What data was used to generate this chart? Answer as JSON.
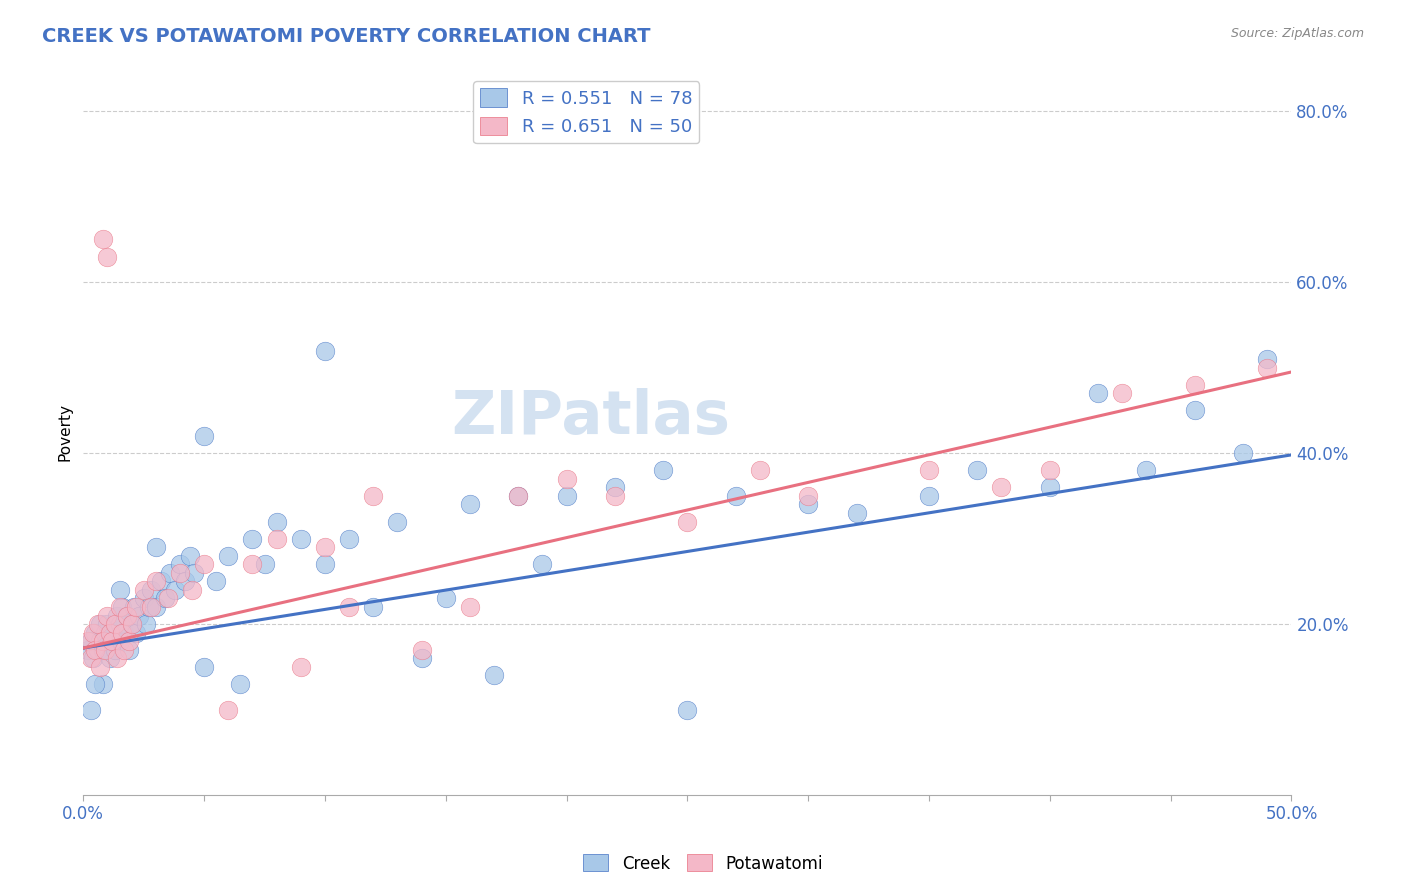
{
  "title": "CREEK VS POTAWATOMI POVERTY CORRELATION CHART",
  "source": "Source: ZipAtlas.com",
  "ylabel": "Poverty",
  "xlim": [
    0.0,
    0.5
  ],
  "ylim": [
    0.0,
    0.85
  ],
  "ytick_positions": [
    0.2,
    0.4,
    0.6,
    0.8
  ],
  "yticklabels": [
    "20.0%",
    "40.0%",
    "60.0%",
    "80.0%"
  ],
  "creek_color": "#a8c8e8",
  "potawatomi_color": "#f4b8c8",
  "creek_line_color": "#4472c4",
  "potawatomi_line_color": "#e87080",
  "creek_R": 0.551,
  "creek_N": 78,
  "potawatomi_R": 0.651,
  "potawatomi_N": 50,
  "background_color": "#ffffff",
  "grid_color": "#cccccc",
  "watermark": "ZIPatlas",
  "creek_scatter_x": [
    0.002,
    0.003,
    0.004,
    0.005,
    0.006,
    0.007,
    0.007,
    0.008,
    0.009,
    0.01,
    0.01,
    0.011,
    0.012,
    0.013,
    0.014,
    0.015,
    0.015,
    0.016,
    0.017,
    0.018,
    0.019,
    0.02,
    0.021,
    0.022,
    0.023,
    0.025,
    0.026,
    0.027,
    0.028,
    0.03,
    0.032,
    0.034,
    0.036,
    0.038,
    0.04,
    0.042,
    0.044,
    0.046,
    0.05,
    0.055,
    0.06,
    0.065,
    0.07,
    0.075,
    0.08,
    0.09,
    0.1,
    0.11,
    0.12,
    0.13,
    0.14,
    0.15,
    0.16,
    0.17,
    0.18,
    0.19,
    0.2,
    0.22,
    0.24,
    0.25,
    0.27,
    0.3,
    0.32,
    0.35,
    0.37,
    0.4,
    0.42,
    0.44,
    0.46,
    0.48,
    0.49,
    0.1,
    0.05,
    0.03,
    0.015,
    0.008,
    0.005,
    0.003
  ],
  "creek_scatter_y": [
    0.17,
    0.18,
    0.16,
    0.19,
    0.17,
    0.18,
    0.2,
    0.17,
    0.19,
    0.18,
    0.2,
    0.16,
    0.19,
    0.17,
    0.21,
    0.18,
    0.2,
    0.22,
    0.19,
    0.21,
    0.17,
    0.2,
    0.22,
    0.19,
    0.21,
    0.23,
    0.2,
    0.22,
    0.24,
    0.22,
    0.25,
    0.23,
    0.26,
    0.24,
    0.27,
    0.25,
    0.28,
    0.26,
    0.15,
    0.25,
    0.28,
    0.13,
    0.3,
    0.27,
    0.32,
    0.3,
    0.27,
    0.3,
    0.22,
    0.32,
    0.16,
    0.23,
    0.34,
    0.14,
    0.35,
    0.27,
    0.35,
    0.36,
    0.38,
    0.1,
    0.35,
    0.34,
    0.33,
    0.35,
    0.38,
    0.36,
    0.47,
    0.38,
    0.45,
    0.4,
    0.51,
    0.52,
    0.42,
    0.29,
    0.24,
    0.13,
    0.13,
    0.1
  ],
  "potawatomi_scatter_x": [
    0.002,
    0.003,
    0.004,
    0.005,
    0.006,
    0.007,
    0.008,
    0.009,
    0.01,
    0.011,
    0.012,
    0.013,
    0.014,
    0.015,
    0.016,
    0.017,
    0.018,
    0.019,
    0.02,
    0.022,
    0.025,
    0.028,
    0.03,
    0.035,
    0.04,
    0.045,
    0.05,
    0.06,
    0.07,
    0.08,
    0.09,
    0.1,
    0.11,
    0.12,
    0.14,
    0.16,
    0.18,
    0.2,
    0.22,
    0.25,
    0.28,
    0.3,
    0.35,
    0.38,
    0.4,
    0.43,
    0.46,
    0.49,
    0.01,
    0.008
  ],
  "potawatomi_scatter_y": [
    0.18,
    0.16,
    0.19,
    0.17,
    0.2,
    0.15,
    0.18,
    0.17,
    0.21,
    0.19,
    0.18,
    0.2,
    0.16,
    0.22,
    0.19,
    0.17,
    0.21,
    0.18,
    0.2,
    0.22,
    0.24,
    0.22,
    0.25,
    0.23,
    0.26,
    0.24,
    0.27,
    0.1,
    0.27,
    0.3,
    0.15,
    0.29,
    0.22,
    0.35,
    0.17,
    0.22,
    0.35,
    0.37,
    0.35,
    0.32,
    0.38,
    0.35,
    0.38,
    0.36,
    0.38,
    0.47,
    0.48,
    0.5,
    0.63,
    0.65
  ],
  "creek_line_y0": 0.172,
  "creek_line_y1": 0.398,
  "potawatomi_line_y0": 0.172,
  "potawatomi_line_y1": 0.495
}
